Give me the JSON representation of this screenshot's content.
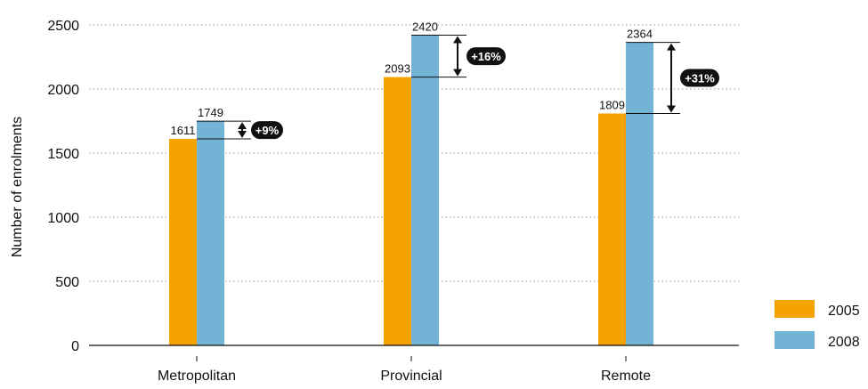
{
  "chart_data": {
    "type": "bar",
    "title": "",
    "xlabel": "",
    "ylabel": "Number of enrolments",
    "ylim": [
      0,
      2500
    ],
    "yticks": [
      "0",
      "500",
      "1000",
      "1500",
      "2000",
      "2500"
    ],
    "categories": [
      "Metropolitan",
      "Provincial",
      "Remote"
    ],
    "series": [
      {
        "name": "2005",
        "values": [
          1611,
          2093,
          1809
        ],
        "color": "#f5a300"
      },
      {
        "name": "2008",
        "values": [
          1749,
          2420,
          2364
        ],
        "color": "#72b3d6"
      }
    ],
    "data_labels": {
      "2005": [
        "1611",
        "2093",
        "1809"
      ],
      "2008": [
        "1749",
        "2420",
        "2364"
      ]
    },
    "change_labels": [
      "+9%",
      "+16%",
      "+31%"
    ],
    "grid": "horizontal dotted",
    "legend": "bottom-right"
  }
}
